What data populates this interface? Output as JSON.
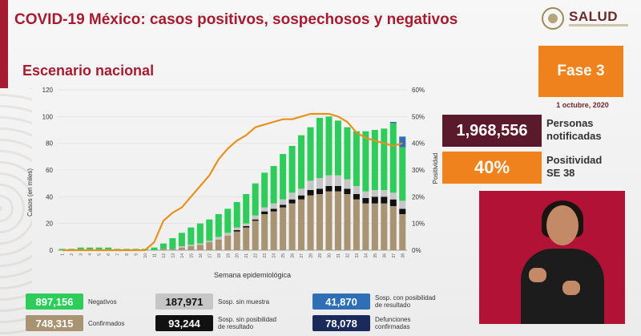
{
  "header": {
    "title": "COVID-19 México: casos positivos, sospechosos y negativos",
    "subtitle": "Escenario nacional",
    "logo_text": "SALUD"
  },
  "phase": {
    "label": "Fase 3",
    "date": "1 octubre, 2020"
  },
  "stats": {
    "notified_value": "1,968,556",
    "notified_label_1": "Personas",
    "notified_label_2": "notificadas",
    "positivity_value": "40%",
    "positivity_label_1": "Positividad",
    "positivity_label_2": "SE 38"
  },
  "legend": {
    "negativos_value": "897,156",
    "negativos_label": "Negativos",
    "sin_muestra_value": "187,971",
    "sin_muestra_label": "Sosp. sin muestra",
    "con_posib_value": "41,870",
    "con_posib_label_1": "Sosp. con posibilidad",
    "con_posib_label_2": "de resultado",
    "confirmados_value": "748,315",
    "confirmados_label": "Confirmados",
    "sin_posib_value": "93,244",
    "sin_posib_label_1": "Sosp. sin posibilidad",
    "sin_posib_label_2": "de resultado",
    "defunciones_value": "78,078",
    "defunciones_label_1": "Defunciones",
    "defunciones_label_2": "confirmadas"
  },
  "colors": {
    "confirmados": "#a89372",
    "sin_posib": "#111111",
    "sin_muestra": "#c6c6c6",
    "negativos": "#2ecc5a",
    "con_posib": "#2f6fb5",
    "positividad": "#e8901e",
    "defunciones": "#1a2a5a",
    "accent": "#a51c30"
  },
  "chart_data": {
    "type": "bar",
    "stacked": true,
    "xlabel": "Semana epidemiológica",
    "ylabel": "Casos (en miles)",
    "y2label": "Positividad",
    "ylim": [
      0,
      120
    ],
    "yticks": [
      0,
      20,
      40,
      60,
      80,
      100,
      120
    ],
    "y2lim": [
      0,
      60
    ],
    "y2ticks": [
      "0%",
      "10%",
      "20%",
      "30%",
      "40%",
      "50%",
      "60%"
    ],
    "categories": [
      "1",
      "2",
      "3",
      "4",
      "5",
      "6",
      "7",
      "8",
      "9",
      "10",
      "11",
      "12",
      "13",
      "14",
      "15",
      "16",
      "17",
      "18",
      "19",
      "20",
      "21",
      "22",
      "23",
      "24",
      "25",
      "26",
      "27",
      "28",
      "29",
      "30",
      "31",
      "32",
      "33",
      "34",
      "35",
      "36",
      "37",
      "38"
    ],
    "series": [
      {
        "name": "Confirmados",
        "values": [
          0,
          0,
          0,
          0,
          0,
          0,
          0,
          0,
          0,
          0,
          0,
          1,
          1,
          2,
          3,
          4,
          6,
          8,
          11,
          14,
          17,
          22,
          27,
          29,
          32,
          35,
          38,
          41,
          42,
          44,
          44,
          42,
          38,
          35,
          35,
          35,
          33,
          27
        ]
      },
      {
        "name": "Sosp. sin posibilidad de resultado",
        "values": [
          0,
          0,
          0,
          0,
          0,
          0,
          0,
          0,
          0,
          0,
          0,
          0,
          0,
          0,
          0,
          0,
          0,
          0,
          0,
          1,
          1,
          1,
          2,
          2,
          2,
          3,
          3,
          4,
          4,
          4,
          4,
          4,
          4,
          4,
          5,
          5,
          5,
          4
        ]
      },
      {
        "name": "Sosp. sin muestra",
        "values": [
          0,
          0,
          0,
          0,
          0,
          0,
          0,
          0,
          0,
          0,
          0,
          0,
          0,
          1,
          1,
          1,
          1,
          2,
          2,
          2,
          2,
          3,
          3,
          4,
          4,
          5,
          5,
          7,
          8,
          8,
          8,
          7,
          6,
          5,
          5,
          5,
          5,
          6
        ]
      },
      {
        "name": "Negativos",
        "values": [
          1,
          1,
          2,
          2,
          2,
          2,
          1,
          1,
          1,
          1,
          2,
          4,
          8,
          10,
          13,
          15,
          16,
          17,
          18,
          19,
          22,
          24,
          26,
          28,
          34,
          35,
          40,
          40,
          45,
          44,
          41,
          39,
          41,
          45,
          45,
          46,
          52,
          40
        ]
      },
      {
        "name": "Sosp. con posibilidad de resultado",
        "values": [
          0,
          0,
          0,
          0,
          0,
          0,
          0,
          0,
          0,
          0,
          0,
          0,
          0,
          0,
          0,
          0,
          0,
          0,
          0,
          0,
          0,
          0,
          0,
          0,
          0,
          0,
          0,
          0,
          0,
          0,
          0,
          0,
          0,
          0,
          0,
          0,
          1,
          8
        ]
      }
    ],
    "line": {
      "name": "Positividad",
      "values": [
        0,
        0,
        0,
        0,
        0,
        0,
        0,
        0,
        0,
        0,
        3,
        11,
        14,
        16,
        20,
        24,
        28,
        34,
        38,
        41,
        43,
        46,
        47,
        48,
        49,
        49,
        50,
        51,
        51,
        51,
        50,
        48,
        44,
        42,
        41,
        40,
        39,
        40
      ]
    }
  }
}
